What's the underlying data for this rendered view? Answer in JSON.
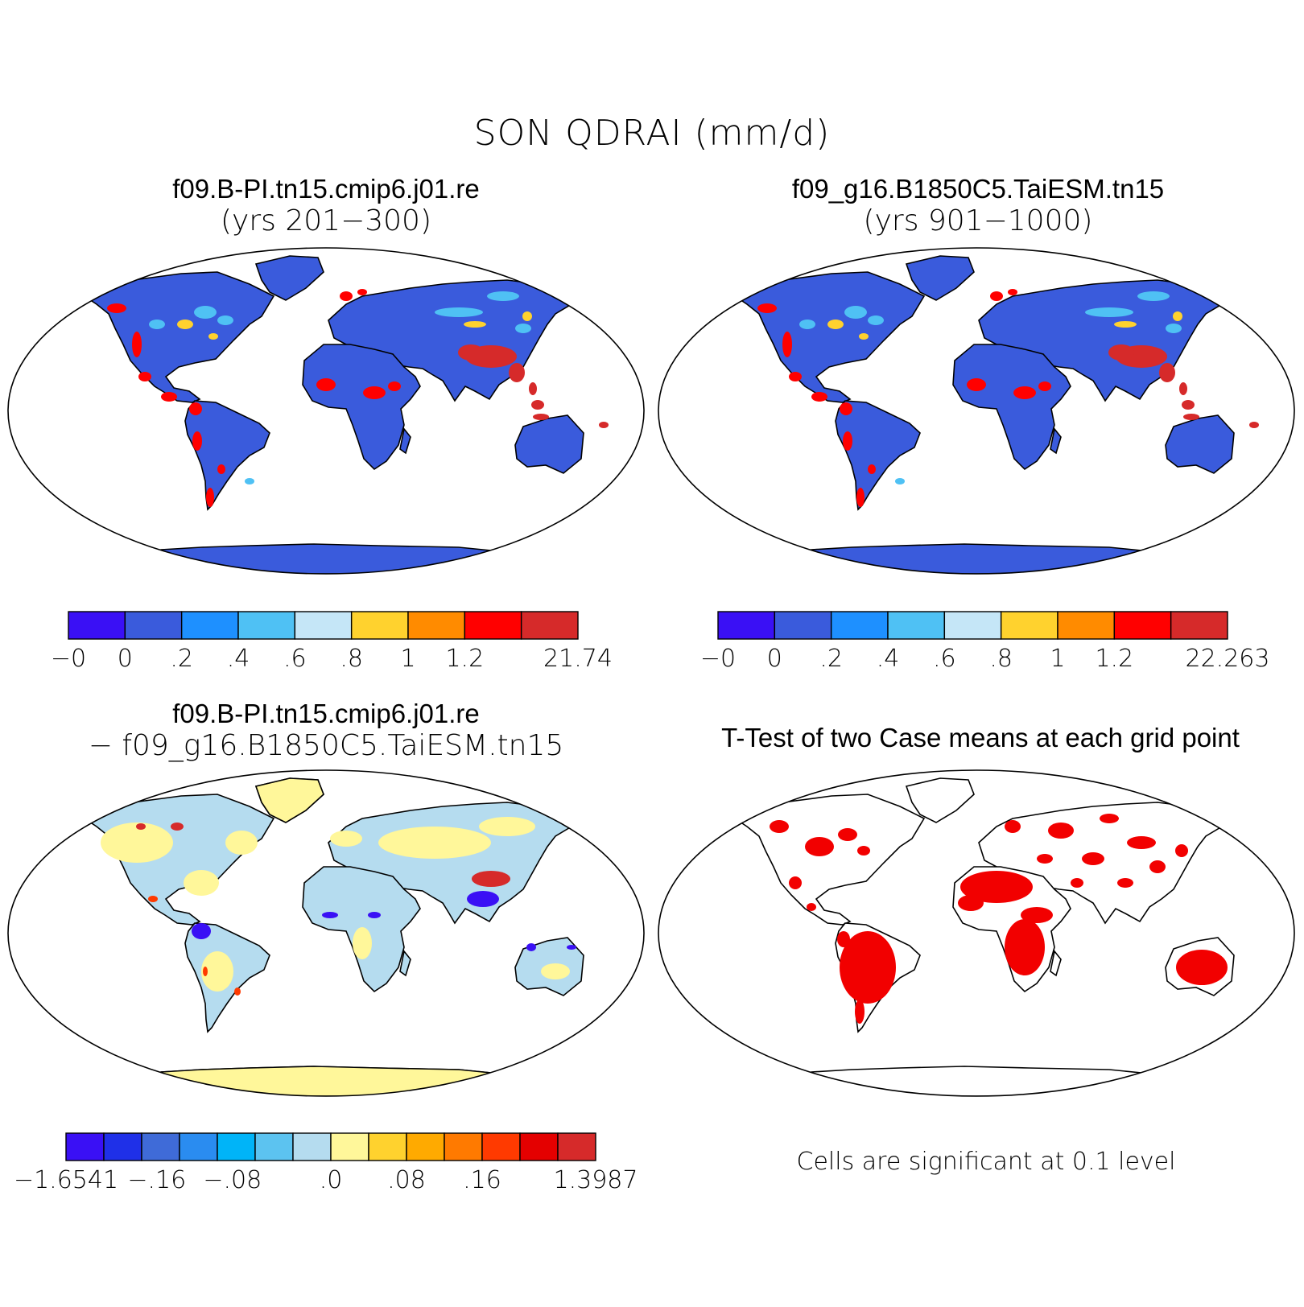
{
  "title": "SON QDRAI (mm/d)",
  "colors": {
    "ocean": "#ffffff",
    "outline": "#000000",
    "abs_land": "#3a5bdc",
    "t_sig": "#f20000"
  },
  "panels": [
    {
      "id": "case1",
      "title_line1": "f09.B-PI.tn15.cmip6.j01.re",
      "title_line2": "(yrs 201−300)",
      "colorbar": {
        "colors": [
          "#3a10f5",
          "#3a5bdc",
          "#1e90ff",
          "#4fc1f4",
          "#c5e6f7",
          "#ffd22e",
          "#ff8b00",
          "#ff0000",
          "#d62a2a"
        ],
        "labels": [
          "−0",
          "0",
          ".2",
          ".4",
          ".6",
          ".8",
          "1",
          "1.2",
          "21.74"
        ]
      }
    },
    {
      "id": "case2",
      "title_line1": "f09_g16.B1850C5.TaiESM.tn15",
      "title_line2": "(yrs 901−1000)",
      "colorbar": {
        "colors": [
          "#3a10f5",
          "#3a5bdc",
          "#1e90ff",
          "#4fc1f4",
          "#c5e6f7",
          "#ffd22e",
          "#ff8b00",
          "#ff0000",
          "#d62a2a"
        ],
        "labels": [
          "−0",
          "0",
          ".2",
          ".4",
          ".6",
          ".8",
          "1",
          "1.2",
          "22.263"
        ]
      }
    },
    {
      "id": "diff",
      "title_line1": "f09.B-PI.tn15.cmip6.j01.re",
      "title_line2": "− f09_g16.B1850C5.TaiESM.tn15",
      "colorbar": {
        "colors": [
          "#3a10f5",
          "#1f30e8",
          "#3f6bd8",
          "#2a8cf0",
          "#00b4f8",
          "#5cc3f0",
          "#b5dcef",
          "#fff79a",
          "#ffd22e",
          "#ffaa00",
          "#ff7a00",
          "#ff3a00",
          "#e40000",
          "#d62a2a"
        ],
        "labels": [
          "−1.6541",
          "−.16",
          "−.08",
          ".0",
          ".08",
          ".16",
          "1.3987"
        ]
      }
    },
    {
      "id": "ttest",
      "title_line1": "T-Test of two Case means at each grid point",
      "footer": "Cells are significant at 0.1 level"
    }
  ]
}
